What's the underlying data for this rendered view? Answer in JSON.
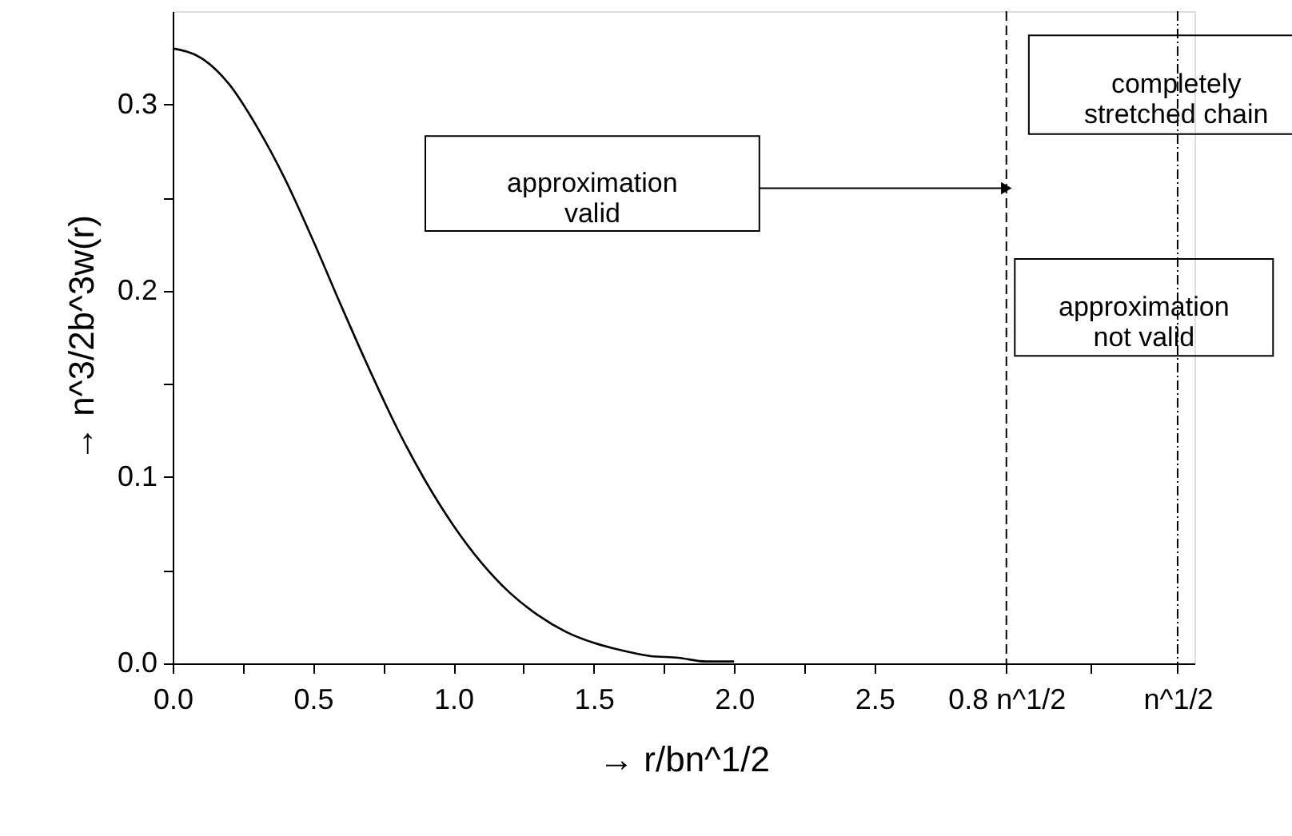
{
  "chart_data": {
    "type": "line",
    "xlabel": "→ r/bn^1/2",
    "ylabel": "→ n^3/2b^3w(r)",
    "series": [
      {
        "color": "#000000",
        "x": [
          0,
          0.1,
          0.2,
          0.3,
          0.4,
          0.5,
          0.6,
          0.7,
          0.8,
          0.9,
          1.0,
          1.1,
          1.2,
          1.3,
          1.4,
          1.5,
          1.6,
          1.7,
          1.8,
          1.9,
          2.0
        ],
        "values": [
          0.33,
          0.325,
          0.311,
          0.288,
          0.26,
          0.227,
          0.192,
          0.158,
          0.126,
          0.098,
          0.074,
          0.054,
          0.038,
          0.026,
          0.017,
          0.011,
          0.007,
          0.004,
          0.003,
          0.001,
          0.001
        ]
      }
    ],
    "xlim": [
      0,
      3.64
    ],
    "xticks": [
      {
        "value": 0,
        "label": "0.0"
      },
      {
        "value": 0.25,
        "label": null
      },
      0.5,
      {
        "value": 0.75,
        "label": null
      },
      {
        "value": 1,
        "label": "1.0"
      },
      {
        "value": 1.25,
        "label": null
      },
      1.5,
      {
        "value": 1.75,
        "label": null
      },
      {
        "value": 2,
        "label": "2.0"
      },
      {
        "value": 2.25,
        "label": null
      },
      2.5,
      {
        "value": 2.97,
        "label": "0.8 n^1/2"
      },
      {
        "value": 3.27,
        "label": null
      },
      {
        "value": 3.58,
        "label": "n^1/2"
      }
    ],
    "ylim": [
      0,
      0.35
    ],
    "yticks": [
      {
        "value": 0,
        "label": "0.0"
      },
      {
        "value": 0.05,
        "label": null
      },
      0.1,
      {
        "value": 0.15,
        "label": null
      },
      0.2,
      {
        "value": 0.25,
        "label": null
      },
      0.3
    ],
    "ref_lines": [
      {
        "axis": "x",
        "value": 2.97,
        "line_style": "dashed"
      },
      {
        "axis": "x",
        "value": 3.58,
        "line_style": "dashed"
      }
    ],
    "annotations": [
      "approximation\nvalid",
      "approximation\nnot  valid",
      "completely\nstretched chain"
    ],
    "grid": false,
    "marker": "none",
    "line_style": "solid"
  }
}
